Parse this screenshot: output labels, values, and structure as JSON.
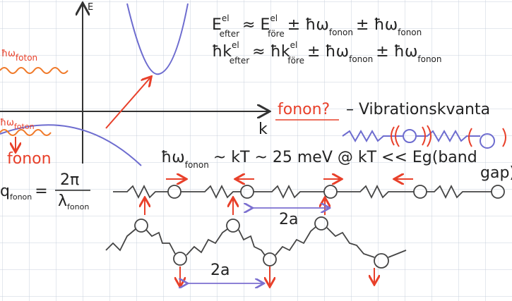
{
  "axes": {
    "y_label": "E",
    "x_label": "k"
  },
  "equations": [
    [
      {
        "base": "E",
        "sup": "el",
        "sub": "efter"
      },
      {
        "base": "≈ E",
        "sup": "el",
        "sub": "före"
      },
      {
        "base": "± ħω",
        "sub": "fonon"
      },
      {
        "base": "± ħω",
        "sub": "fonon"
      }
    ],
    [
      {
        "base": "ħk",
        "sup": "el",
        "sub": "efter"
      },
      {
        "base": "≈ ħk",
        "sup": "el",
        "sub": "före"
      },
      {
        "base": "± ħω",
        "sub": "fonon"
      },
      {
        "base": "± ħω",
        "sub": "fonon"
      }
    ]
  ],
  "photon_upper": {
    "base": "ħω",
    "sub": "foton"
  },
  "photon_lower": {
    "base": "ħω",
    "sub": "foton"
  },
  "phonon_question": "fonon?",
  "vibration_label": "– Vibrationskvanta",
  "phonon_left": "fonon",
  "energy_relation": {
    "base": "ħω",
    "sub": "fonon",
    "rest": "~ kT ~ 25 meV @ kT << Eg(band",
    "rest2": "gap)"
  },
  "wavevector": {
    "base": "q",
    "sub": "fonon",
    "eq": "=",
    "num": "2π",
    "den_base": "λ",
    "den_sub": "fonon"
  },
  "spacing_upper": "2a",
  "spacing_lower": "2a"
}
